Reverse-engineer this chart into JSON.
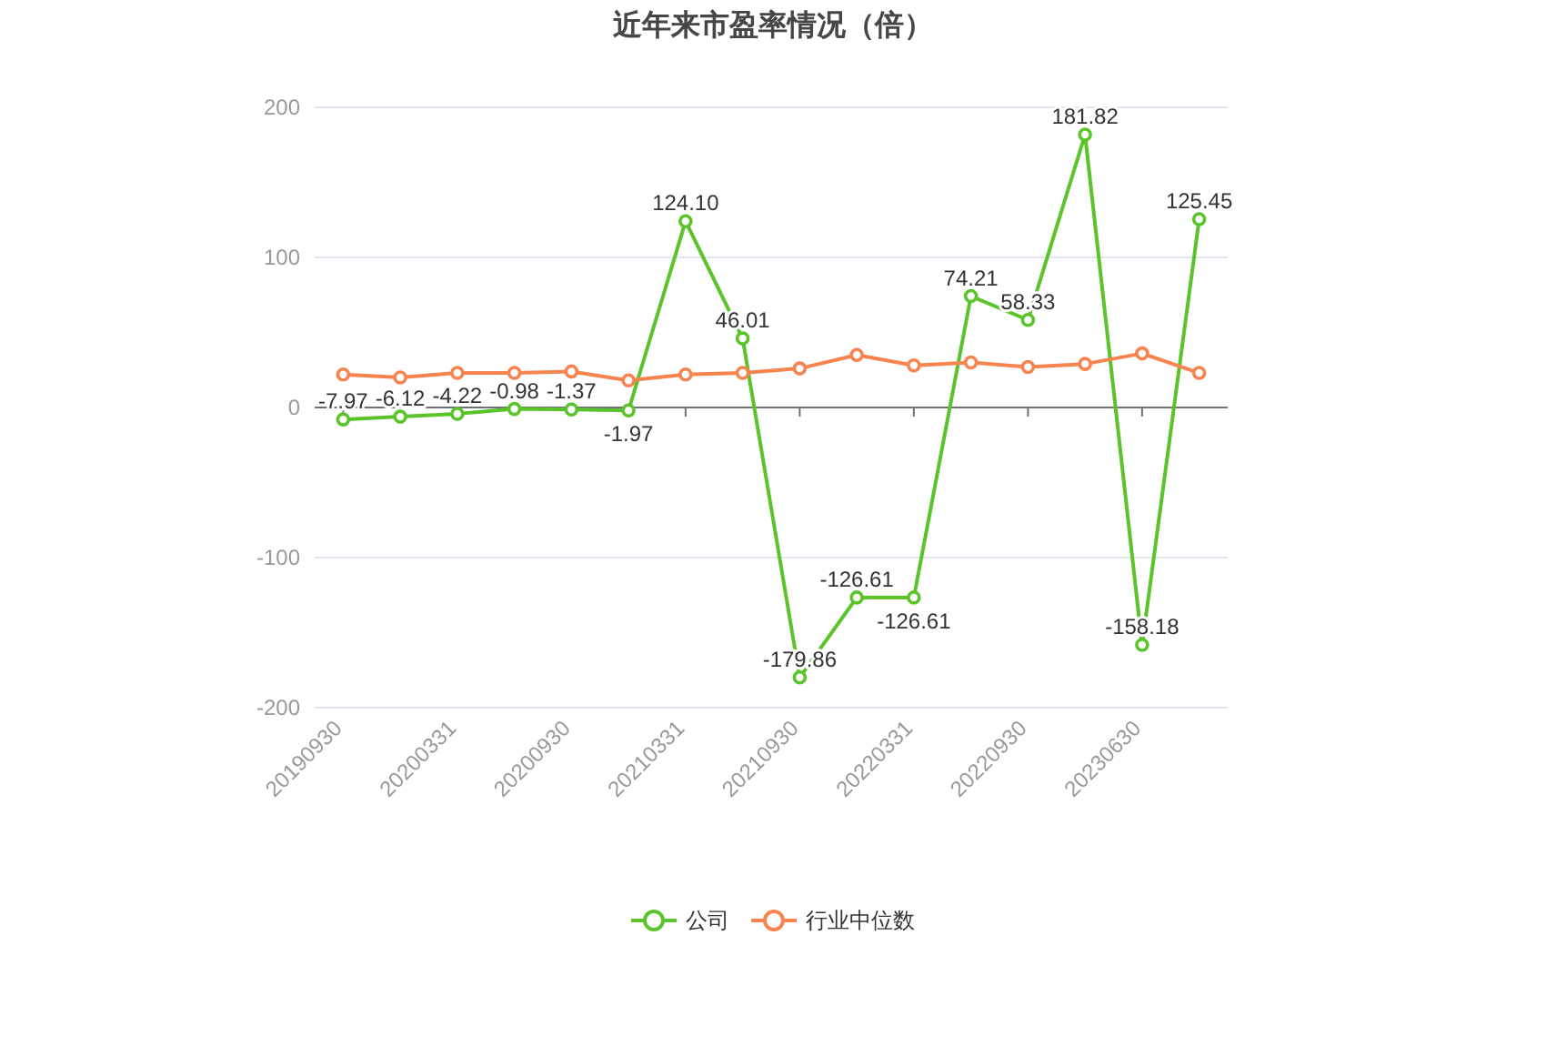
{
  "chart_data": {
    "type": "line",
    "title": "近年来市盈率情况（倍）",
    "categories": [
      "20190930",
      null,
      "20200331",
      null,
      "20200930",
      null,
      "20210331",
      null,
      "20210930",
      null,
      "20220331",
      null,
      "20220930",
      null,
      "20230630",
      null
    ],
    "series": [
      {
        "name": "公司",
        "color": "#5bc42b",
        "values": [
          -7.97,
          -6.12,
          -4.22,
          -0.98,
          -1.37,
          -1.97,
          124.1,
          46.01,
          -179.86,
          -126.61,
          -126.61,
          74.21,
          58.33,
          181.82,
          -158.18,
          125.45
        ],
        "value_labels": [
          "-7.97",
          "-6.12",
          "-4.22",
          "-0.98",
          "-1.37",
          "-1.97",
          "124.10",
          "46.01",
          "-179.86",
          "-126.61",
          "-126.61",
          "74.21",
          "58.33",
          "181.82",
          "-158.18",
          "125.45"
        ]
      },
      {
        "name": "行业中位数",
        "color": "#f7834f",
        "values": [
          22,
          20,
          23,
          23,
          24,
          18,
          22,
          23,
          26,
          35,
          28,
          30,
          27,
          29,
          36,
          23
        ]
      }
    ],
    "ylim": [
      -200,
      200
    ],
    "yticks": [
      -200,
      -100,
      0,
      100,
      200
    ],
    "grid": "y",
    "legend": "bottom",
    "marker": "circle",
    "line_style": "solid"
  }
}
